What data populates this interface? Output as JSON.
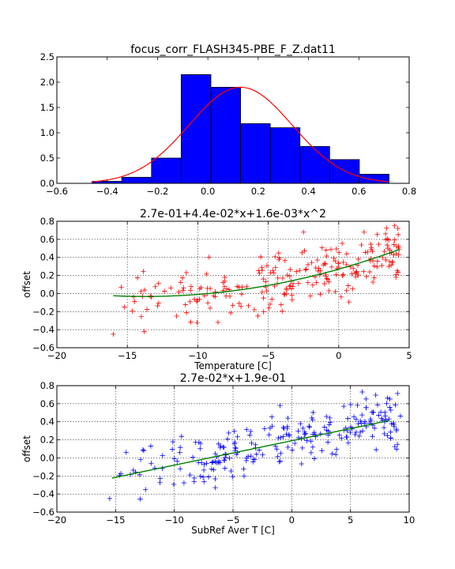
{
  "chart_data": [
    {
      "type": "bar",
      "title": "focus_corr_FLASH345-PBE_F_Z.dat11",
      "xlabel": "",
      "ylabel": "",
      "xlim": [
        -0.6,
        0.8
      ],
      "ylim": [
        0,
        2.5
      ],
      "xticks": [
        "−0.6",
        "−0.4",
        "−0.2",
        "0.0",
        "0.2",
        "0.4",
        "0.6",
        "0.8"
      ],
      "yticks": [
        "0.0",
        "0.5",
        "1.0",
        "1.5",
        "2.0",
        "2.5"
      ],
      "grid": false,
      "bar_color": "#0000ff",
      "curve_color": "#ff0000",
      "bins": [
        {
          "x0": -0.46,
          "x1": -0.342,
          "h": 0.04
        },
        {
          "x0": -0.342,
          "x1": -0.224,
          "h": 0.12
        },
        {
          "x0": -0.224,
          "x1": -0.106,
          "h": 0.5
        },
        {
          "x0": -0.106,
          "x1": 0.012,
          "h": 2.15
        },
        {
          "x0": 0.012,
          "x1": 0.13,
          "h": 1.9
        },
        {
          "x0": 0.13,
          "x1": 0.248,
          "h": 1.18
        },
        {
          "x0": 0.248,
          "x1": 0.366,
          "h": 1.1
        },
        {
          "x0": 0.366,
          "x1": 0.484,
          "h": 0.73
        },
        {
          "x0": 0.484,
          "x1": 0.602,
          "h": 0.47
        },
        {
          "x0": 0.602,
          "x1": 0.72,
          "h": 0.18
        }
      ],
      "gauss": {
        "mu": 0.13,
        "sigma": 0.205,
        "peak": 1.9,
        "xmin": -0.46,
        "xmax": 0.72
      }
    },
    {
      "type": "scatter",
      "title": "2.7e-01+4.4e-02*x+1.6e-03*x^2",
      "xlabel": "Temperature [C]",
      "ylabel": "offset",
      "xlim": [
        -20,
        5
      ],
      "ylim": [
        -0.6,
        0.8
      ],
      "xticks": [
        "−20",
        "−15",
        "−10",
        "−5",
        "0",
        "5"
      ],
      "yticks": [
        "−0.6",
        "−0.4",
        "−0.2",
        "0.0",
        "0.2",
        "0.4",
        "0.6",
        "0.8"
      ],
      "grid": true,
      "marker_color": "#ff0000",
      "fit_color": "#008000",
      "fit": {
        "type": "poly2",
        "a": 0.27,
        "b": 0.044,
        "c": 0.0016,
        "xmin": -16.0,
        "xmax": 4.3
      },
      "scatter": {
        "xmin": -16.0,
        "xmax": 4.3,
        "n": 240,
        "noise": 0.15,
        "seed": 7
      },
      "extra_points": [
        [
          -16.0,
          -0.45
        ],
        [
          -13.8,
          -0.42
        ],
        [
          -15.2,
          -0.15
        ],
        [
          -11.5,
          -0.25
        ],
        [
          4.2,
          0.72
        ],
        [
          -2.5,
          0.68
        ],
        [
          1.8,
          0.68
        ]
      ]
    },
    {
      "type": "scatter",
      "title": "2.7e-02*x+1.9e-01",
      "xlabel": "SubRef Aver T [C]",
      "ylabel": "offset",
      "xlim": [
        -20,
        10
      ],
      "ylim": [
        -0.6,
        0.8
      ],
      "xticks": [
        "−20",
        "−15",
        "−10",
        "−5",
        "0",
        "5",
        "10"
      ],
      "yticks": [
        "−0.6",
        "−0.4",
        "−0.2",
        "0.0",
        "0.2",
        "0.4",
        "0.6",
        "0.8"
      ],
      "grid": true,
      "marker_color": "#0000ff",
      "fit_color": "#008000",
      "fit": {
        "type": "linear",
        "a": 0.19,
        "b": 0.027,
        "xmin": -15.3,
        "xmax": 8.3
      },
      "scatter": {
        "xmin": -15.5,
        "xmax": 9.3,
        "n": 240,
        "noise": 0.14,
        "seed": 13
      },
      "extra_points": [
        [
          -15.5,
          -0.45
        ],
        [
          -12.0,
          0.13
        ],
        [
          6.0,
          0.73
        ],
        [
          9.0,
          0.15
        ],
        [
          -6.5,
          -0.33
        ],
        [
          -1.0,
          0.58
        ]
      ]
    }
  ]
}
